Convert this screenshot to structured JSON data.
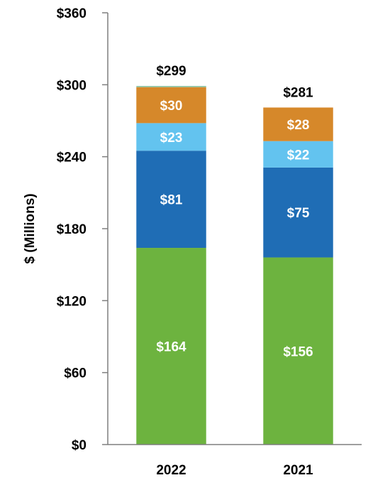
{
  "chart_data": {
    "type": "bar",
    "stacked": true,
    "title": "",
    "xlabel": "",
    "ylabel": "$ (Millions)",
    "ylim": [
      0,
      360
    ],
    "yticks": [
      0,
      60,
      120,
      180,
      240,
      300,
      360
    ],
    "ytick_labels": [
      "$0",
      "$60",
      "$120",
      "$180",
      "$240",
      "$300",
      "$360"
    ],
    "categories": [
      "2022",
      "2021"
    ],
    "series": [
      {
        "values": [
          164,
          156
        ],
        "labels": [
          "$164",
          "$156"
        ],
        "color": "#6db33f"
      },
      {
        "values": [
          81,
          75
        ],
        "labels": [
          "$81",
          "$75"
        ],
        "color": "#1f6db5"
      },
      {
        "values": [
          23,
          22
        ],
        "labels": [
          "$23",
          "$22"
        ],
        "color": "#63c3ef"
      },
      {
        "values": [
          30,
          28
        ],
        "labels": [
          "$30",
          "$28"
        ],
        "color": "#d6882a"
      },
      {
        "values": [
          1,
          0
        ],
        "labels": [
          "",
          ""
        ],
        "color": "#8dc6a6"
      }
    ],
    "totals": [
      299,
      281
    ],
    "total_labels": [
      "$299",
      "$281"
    ],
    "grid": false,
    "legend": "none"
  }
}
